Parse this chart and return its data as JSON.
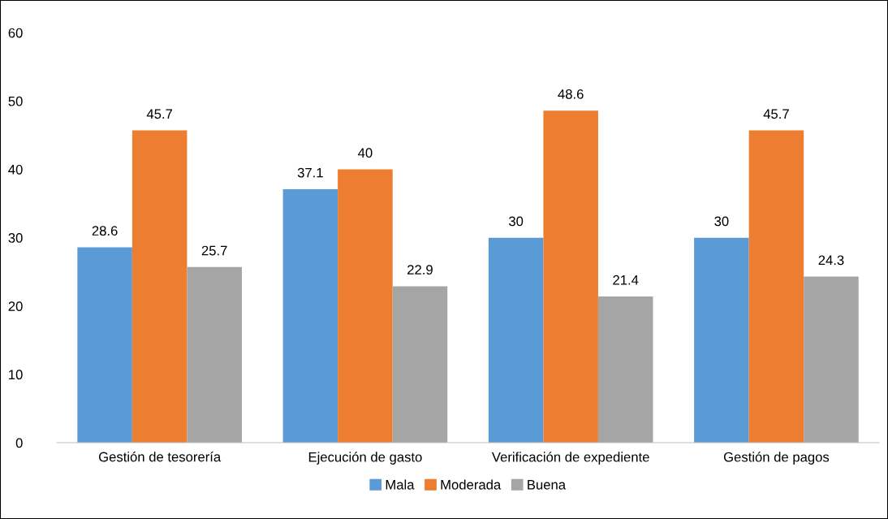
{
  "chart_data": {
    "type": "bar",
    "categories": [
      "Gestión de tesorería",
      "Ejecución de gasto",
      "Verificación de expediente",
      "Gestión de pagos"
    ],
    "series": [
      {
        "name": "Mala",
        "color": "#5b9bd5",
        "values": [
          28.6,
          37.1,
          30,
          30
        ]
      },
      {
        "name": "Moderada",
        "color": "#ed7d31",
        "values": [
          45.7,
          40,
          48.6,
          45.7
        ]
      },
      {
        "name": "Buena",
        "color": "#a5a5a5",
        "values": [
          25.7,
          22.9,
          21.4,
          24.3
        ]
      }
    ],
    "ylim": [
      0,
      60
    ],
    "yticks": [
      0,
      10,
      20,
      30,
      40,
      50,
      60
    ],
    "data_labels": true,
    "grid": false,
    "legend": "bottom"
  }
}
